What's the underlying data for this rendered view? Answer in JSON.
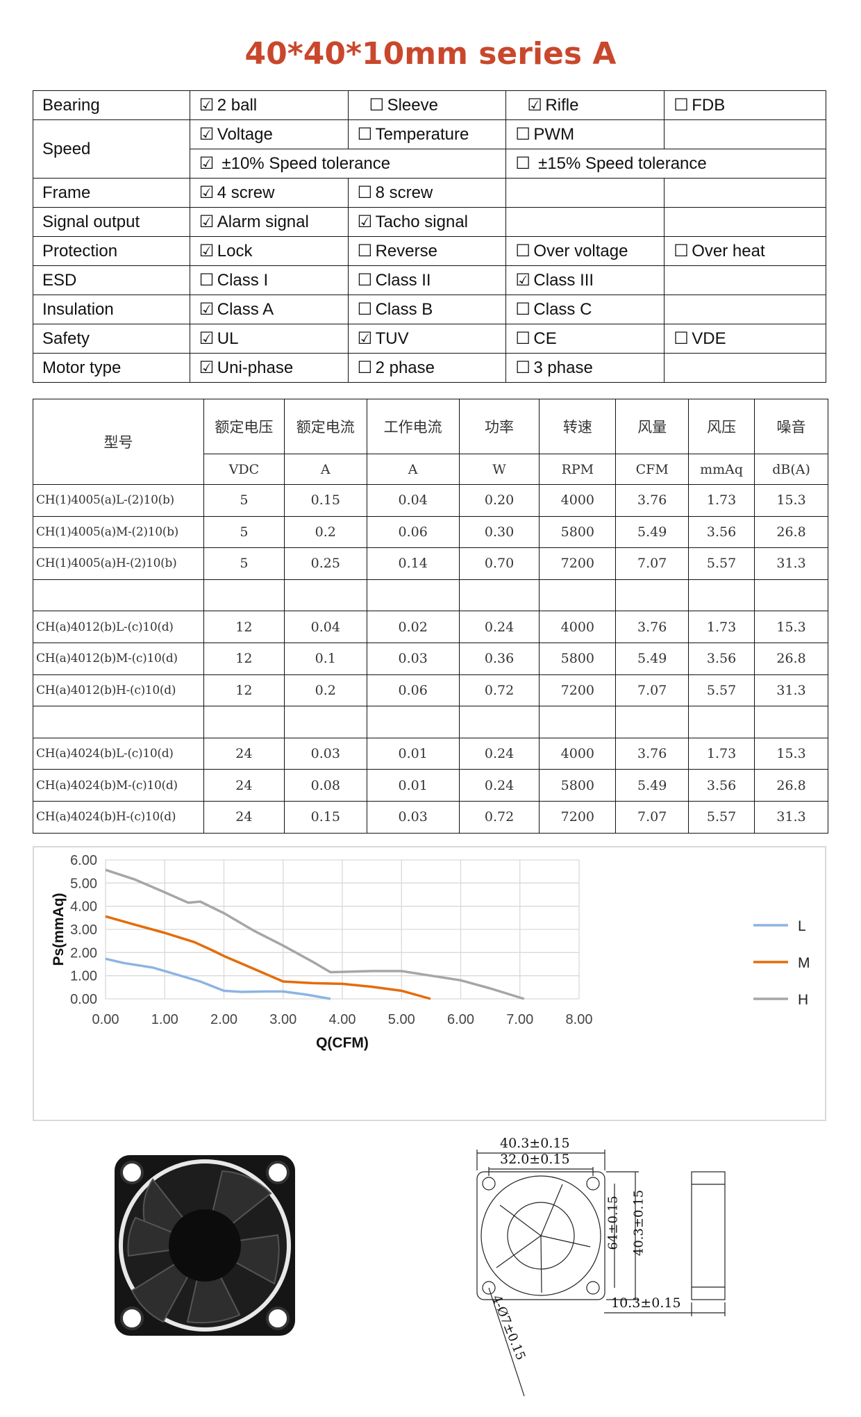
{
  "title": "40*40*10mm series A",
  "spec": {
    "bearing": {
      "label": "Bearing",
      "o1": "2 ball",
      "o2": "Sleeve",
      "o3": "Rifle",
      "o4": "FDB"
    },
    "speed": {
      "label": "Speed",
      "o1": "Voltage",
      "o2": "Temperature",
      "o3": "PWM",
      "t1": "±10% Speed tolerance",
      "t2": "±15% Speed tolerance"
    },
    "frame": {
      "label": "Frame",
      "o1": "4 screw",
      "o2": "8 screw"
    },
    "signal": {
      "label": "Signal output",
      "o1": "Alarm signal",
      "o2": "Tacho signal"
    },
    "protection": {
      "label": "Protection",
      "o1": "Lock",
      "o2": "Reverse",
      "o3": "Over voltage",
      "o4": "Over heat"
    },
    "esd": {
      "label": "ESD",
      "o1": "Class I",
      "o2": "Class II",
      "o3": "Class III"
    },
    "insulation": {
      "label": "Insulation",
      "o1": "Class A",
      "o2": "Class B",
      "o3": "Class C"
    },
    "safety": {
      "label": "Safety",
      "o1": "UL",
      "o2": "TUV",
      "o3": "CE",
      "o4": "VDE"
    },
    "motor": {
      "label": "Motor type",
      "o1": "Uni-phase",
      "o2": "2 phase",
      "o3": "3 phase"
    },
    "checked": "☑",
    "unchecked": "☐"
  },
  "models": {
    "headers": [
      "型号",
      "额定电压",
      "额定电流",
      "工作电流",
      "功率",
      "转速",
      "风量",
      "风压",
      "噪音"
    ],
    "units": [
      "VDC",
      "A",
      "A",
      "W",
      "RPM",
      "CFM",
      "mmAq",
      "dB(A)"
    ],
    "rows": [
      [
        "CH(1)4005(a)L-(2)10(b)",
        "5",
        "0.15",
        "0.04",
        "0.20",
        "4000",
        "3.76",
        "1.73",
        "15.3"
      ],
      [
        "CH(1)4005(a)M-(2)10(b)",
        "5",
        "0.2",
        "0.06",
        "0.30",
        "5800",
        "5.49",
        "3.56",
        "26.8"
      ],
      [
        "CH(1)4005(a)H-(2)10(b)",
        "5",
        "0.25",
        "0.14",
        "0.70",
        "7200",
        "7.07",
        "5.57",
        "31.3"
      ],
      [
        "CH(a)4012(b)L-(c)10(d)",
        "12",
        "0.04",
        "0.02",
        "0.24",
        "4000",
        "3.76",
        "1.73",
        "15.3"
      ],
      [
        "CH(a)4012(b)M-(c)10(d)",
        "12",
        "0.1",
        "0.03",
        "0.36",
        "5800",
        "5.49",
        "3.56",
        "26.8"
      ],
      [
        "CH(a)4012(b)H-(c)10(d)",
        "12",
        "0.2",
        "0.06",
        "0.72",
        "7200",
        "7.07",
        "5.57",
        "31.3"
      ],
      [
        "CH(a)4024(b)L-(c)10(d)",
        "24",
        "0.03",
        "0.01",
        "0.24",
        "4000",
        "3.76",
        "1.73",
        "15.3"
      ],
      [
        "CH(a)4024(b)M-(c)10(d)",
        "24",
        "0.08",
        "0.01",
        "0.24",
        "5800",
        "5.49",
        "3.56",
        "26.8"
      ],
      [
        "CH(a)4024(b)H-(c)10(d)",
        "24",
        "0.15",
        "0.03",
        "0.72",
        "7200",
        "7.07",
        "5.57",
        "31.3"
      ]
    ]
  },
  "chart_data": {
    "type": "line",
    "title": "",
    "xlabel": "Q(CFM)",
    "ylabel": "Ps(mmAq)",
    "xlim": [
      0,
      8
    ],
    "ylim": [
      0,
      6
    ],
    "xticks": [
      "0.00",
      "1.00",
      "2.00",
      "3.00",
      "4.00",
      "5.00",
      "6.00",
      "7.00",
      "8.00"
    ],
    "yticks": [
      "0.00",
      "1.00",
      "2.00",
      "3.00",
      "4.00",
      "5.00",
      "6.00"
    ],
    "grid": true,
    "legend": "right",
    "series": [
      {
        "name": "L",
        "color": "#8db4e2",
        "x": [
          0,
          0.3,
          0.8,
          1.2,
          1.6,
          2.0,
          2.3,
          2.7,
          3.0,
          3.4,
          3.8
        ],
        "y": [
          1.73,
          1.55,
          1.35,
          1.05,
          0.75,
          0.35,
          0.3,
          0.32,
          0.32,
          0.18,
          0
        ]
      },
      {
        "name": "M",
        "color": "#e46c0a",
        "x": [
          0,
          0.5,
          1.0,
          1.5,
          1.8,
          2.0,
          2.5,
          3.0,
          3.5,
          4.0,
          4.5,
          5.0,
          5.49
        ],
        "y": [
          3.56,
          3.2,
          2.85,
          2.45,
          2.1,
          1.85,
          1.3,
          0.75,
          0.68,
          0.65,
          0.52,
          0.35,
          0
        ]
      },
      {
        "name": "H",
        "color": "#a6a6a6",
        "x": [
          0,
          0.5,
          1.0,
          1.4,
          1.6,
          2.0,
          2.5,
          3.0,
          3.5,
          3.8,
          4.5,
          5.0,
          5.5,
          6.0,
          6.5,
          7.07
        ],
        "y": [
          5.57,
          5.15,
          4.6,
          4.15,
          4.2,
          3.7,
          2.95,
          2.3,
          1.6,
          1.15,
          1.2,
          1.2,
          1.0,
          0.8,
          0.45,
          0
        ]
      }
    ]
  },
  "drawing": {
    "dim_outer": "40.3±0.15",
    "dim_hole": "32.0±0.15",
    "dim_v_inner": "64±0.15",
    "dim_v_outer": "40.3±0.15",
    "dim_hole_dia": "4-Ø7±0.15",
    "dim_depth": "10.3±0.15"
  }
}
